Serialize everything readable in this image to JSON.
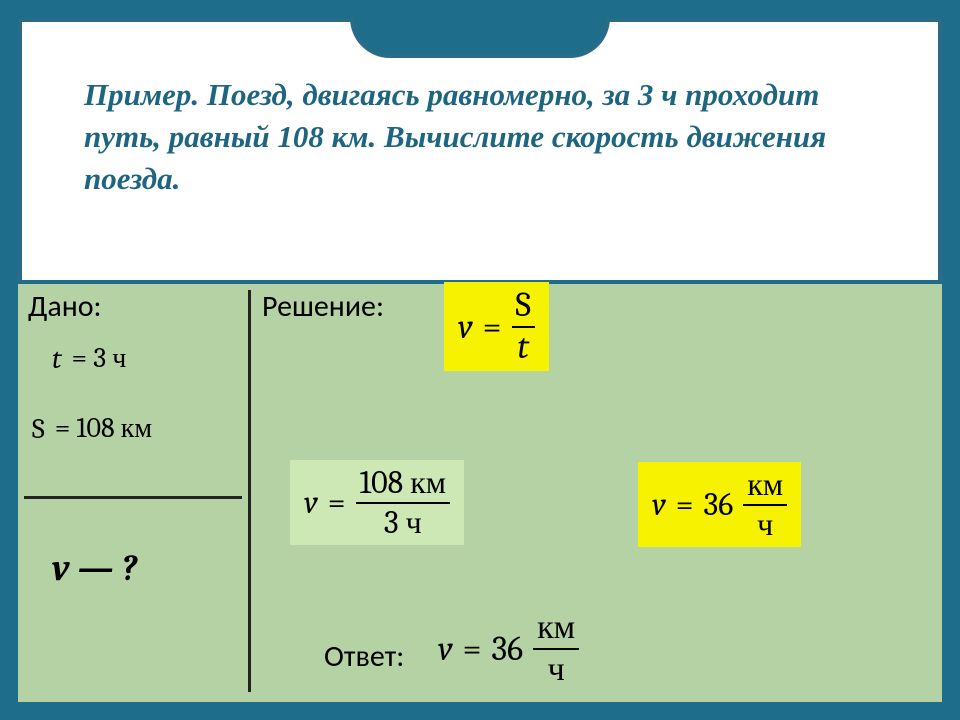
{
  "colors": {
    "teal": "#1e6d8a",
    "border": "#2b6b88",
    "problem_text": "#1e6580",
    "panel_green": "#b5d2a5",
    "yellow": "#f6f200",
    "lightgreen": "#cde8b4",
    "black": "#000000",
    "line": "#222222"
  },
  "fonts": {
    "problem_size": 31,
    "label_size": 30
  },
  "problem": {
    "text": "Пример. Поезд, двигаясь равномерно, за 3 ч проходит путь, равный 108 км. Вычислите скорость движения поезда."
  },
  "labels": {
    "given": "Дано:",
    "solution": "Решение:",
    "answer": "Ответ:"
  },
  "given": {
    "t_var": "t",
    "t_eq": "= 3 ч",
    "s_var": "S",
    "s_eq": "= 108 км",
    "find": "v — ?"
  },
  "formula": {
    "lhs": "v",
    "eq": "=",
    "num": "S",
    "den": "t"
  },
  "calc": {
    "lhs": "v",
    "eq": "=",
    "num": "108 км",
    "den": "3 ч"
  },
  "result": {
    "lhs": "v",
    "eq": "=",
    "val": "36",
    "num": "км",
    "den": "ч"
  },
  "answer": {
    "lhs": "v",
    "eq": "=",
    "val": "36",
    "num": "км",
    "den": "ч"
  }
}
